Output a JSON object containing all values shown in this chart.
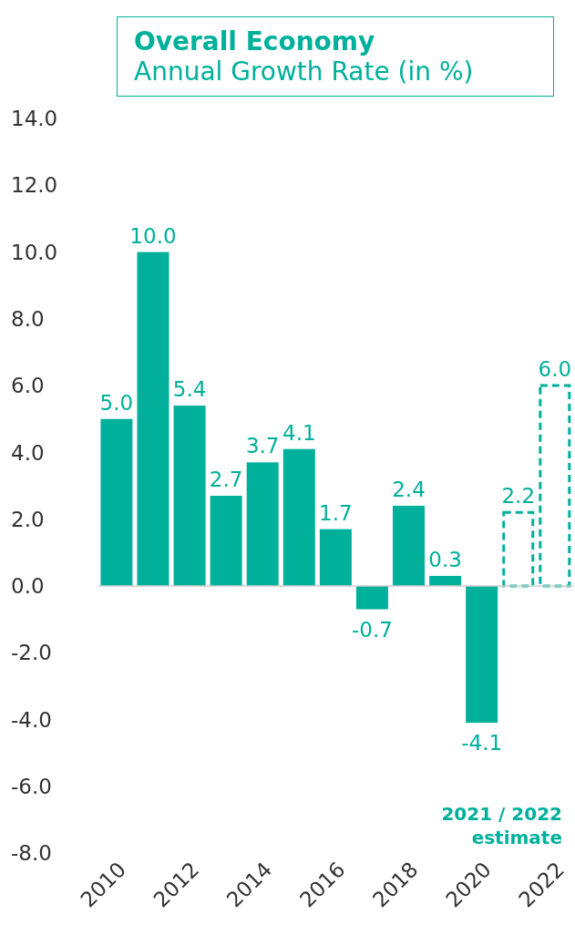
{
  "chart_data": {
    "type": "bar",
    "title": "Overall Economy",
    "subtitle": "Annual Growth Rate (in %)",
    "categories": [
      "2010",
      null,
      "2012",
      null,
      "2014",
      null,
      "2016",
      null,
      "2018",
      null,
      "2020",
      null,
      "2022"
    ],
    "stacked": true,
    "series": [
      {
        "color": "#00b09b",
        "values": [
          5.0,
          10.0,
          5.4,
          2.7,
          3.7,
          4.1,
          1.7,
          -0.7,
          2.4,
          0.3,
          -4.1,
          null,
          null
        ],
        "value_labels": [
          "5.0",
          "10.0",
          "5.4",
          "2.7",
          "3.7",
          "4.1",
          "1.7",
          "-0.7",
          "2.4",
          "0.3",
          "-4.1",
          null,
          null
        ]
      },
      {
        "color": "#00b09b",
        "line_style": "dashed",
        "values": [
          null,
          null,
          null,
          null,
          null,
          null,
          null,
          null,
          null,
          null,
          null,
          2.2,
          6.0
        ],
        "value_labels": [
          null,
          null,
          null,
          null,
          null,
          null,
          null,
          null,
          null,
          null,
          null,
          "2.2",
          "6.0"
        ]
      }
    ],
    "ylim": [
      -8,
      14
    ],
    "yticks": [
      {
        "value": -8,
        "label": "-8.0"
      },
      {
        "value": -6,
        "label": "-6.0"
      },
      {
        "value": -4,
        "label": "-4.0"
      },
      {
        "value": -2,
        "label": "-2.0"
      },
      {
        "value": 0,
        "label": "0.0"
      },
      {
        "value": 2,
        "label": "2.0"
      },
      {
        "value": 4,
        "label": "4.0"
      },
      {
        "value": 6,
        "label": "6.0"
      },
      {
        "value": 8,
        "label": "8.0"
      },
      {
        "value": 10,
        "label": "10.0"
      },
      {
        "value": 12,
        "label": "12.0"
      },
      {
        "value": 14,
        "label": "14.0"
      }
    ],
    "ref_lines": [
      {
        "axis": "y",
        "value": 0,
        "color": "#cccccc"
      }
    ],
    "grid": false,
    "legend": false,
    "annotations": [
      "2021 / 2022",
      "estimate"
    ]
  }
}
